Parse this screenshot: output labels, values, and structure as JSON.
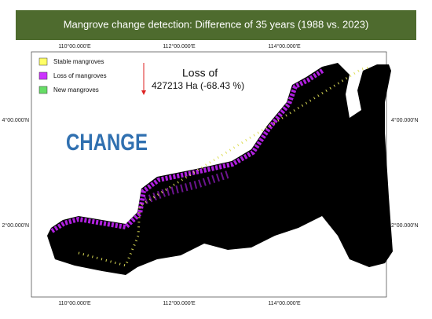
{
  "header": {
    "title": "Mangrove change detection: Difference of 35 years (1988 vs. 2023)"
  },
  "legend": [
    {
      "name": "Stable mangroves",
      "color": "#ffff66"
    },
    {
      "name": "Loss of mangroves",
      "color": "#cc33ff"
    },
    {
      "name": "New mangroves",
      "color": "#66dd66"
    }
  ],
  "annotation": {
    "line1": "Loss of",
    "line2": "427213 Ha (-68.43 %)"
  },
  "overlay_text": "CHANGE",
  "coordinates": {
    "top": [
      "110°00.000'E",
      "112°00.000'E",
      "114°00.000'E"
    ],
    "bottom": [
      "110°00.000'E",
      "112°00.000'E",
      "114°00.000'E"
    ],
    "left": [
      "4°00.000'N",
      "2°00.000'N"
    ],
    "right": [
      "4°00.000'N",
      "2°00.000'N"
    ]
  }
}
